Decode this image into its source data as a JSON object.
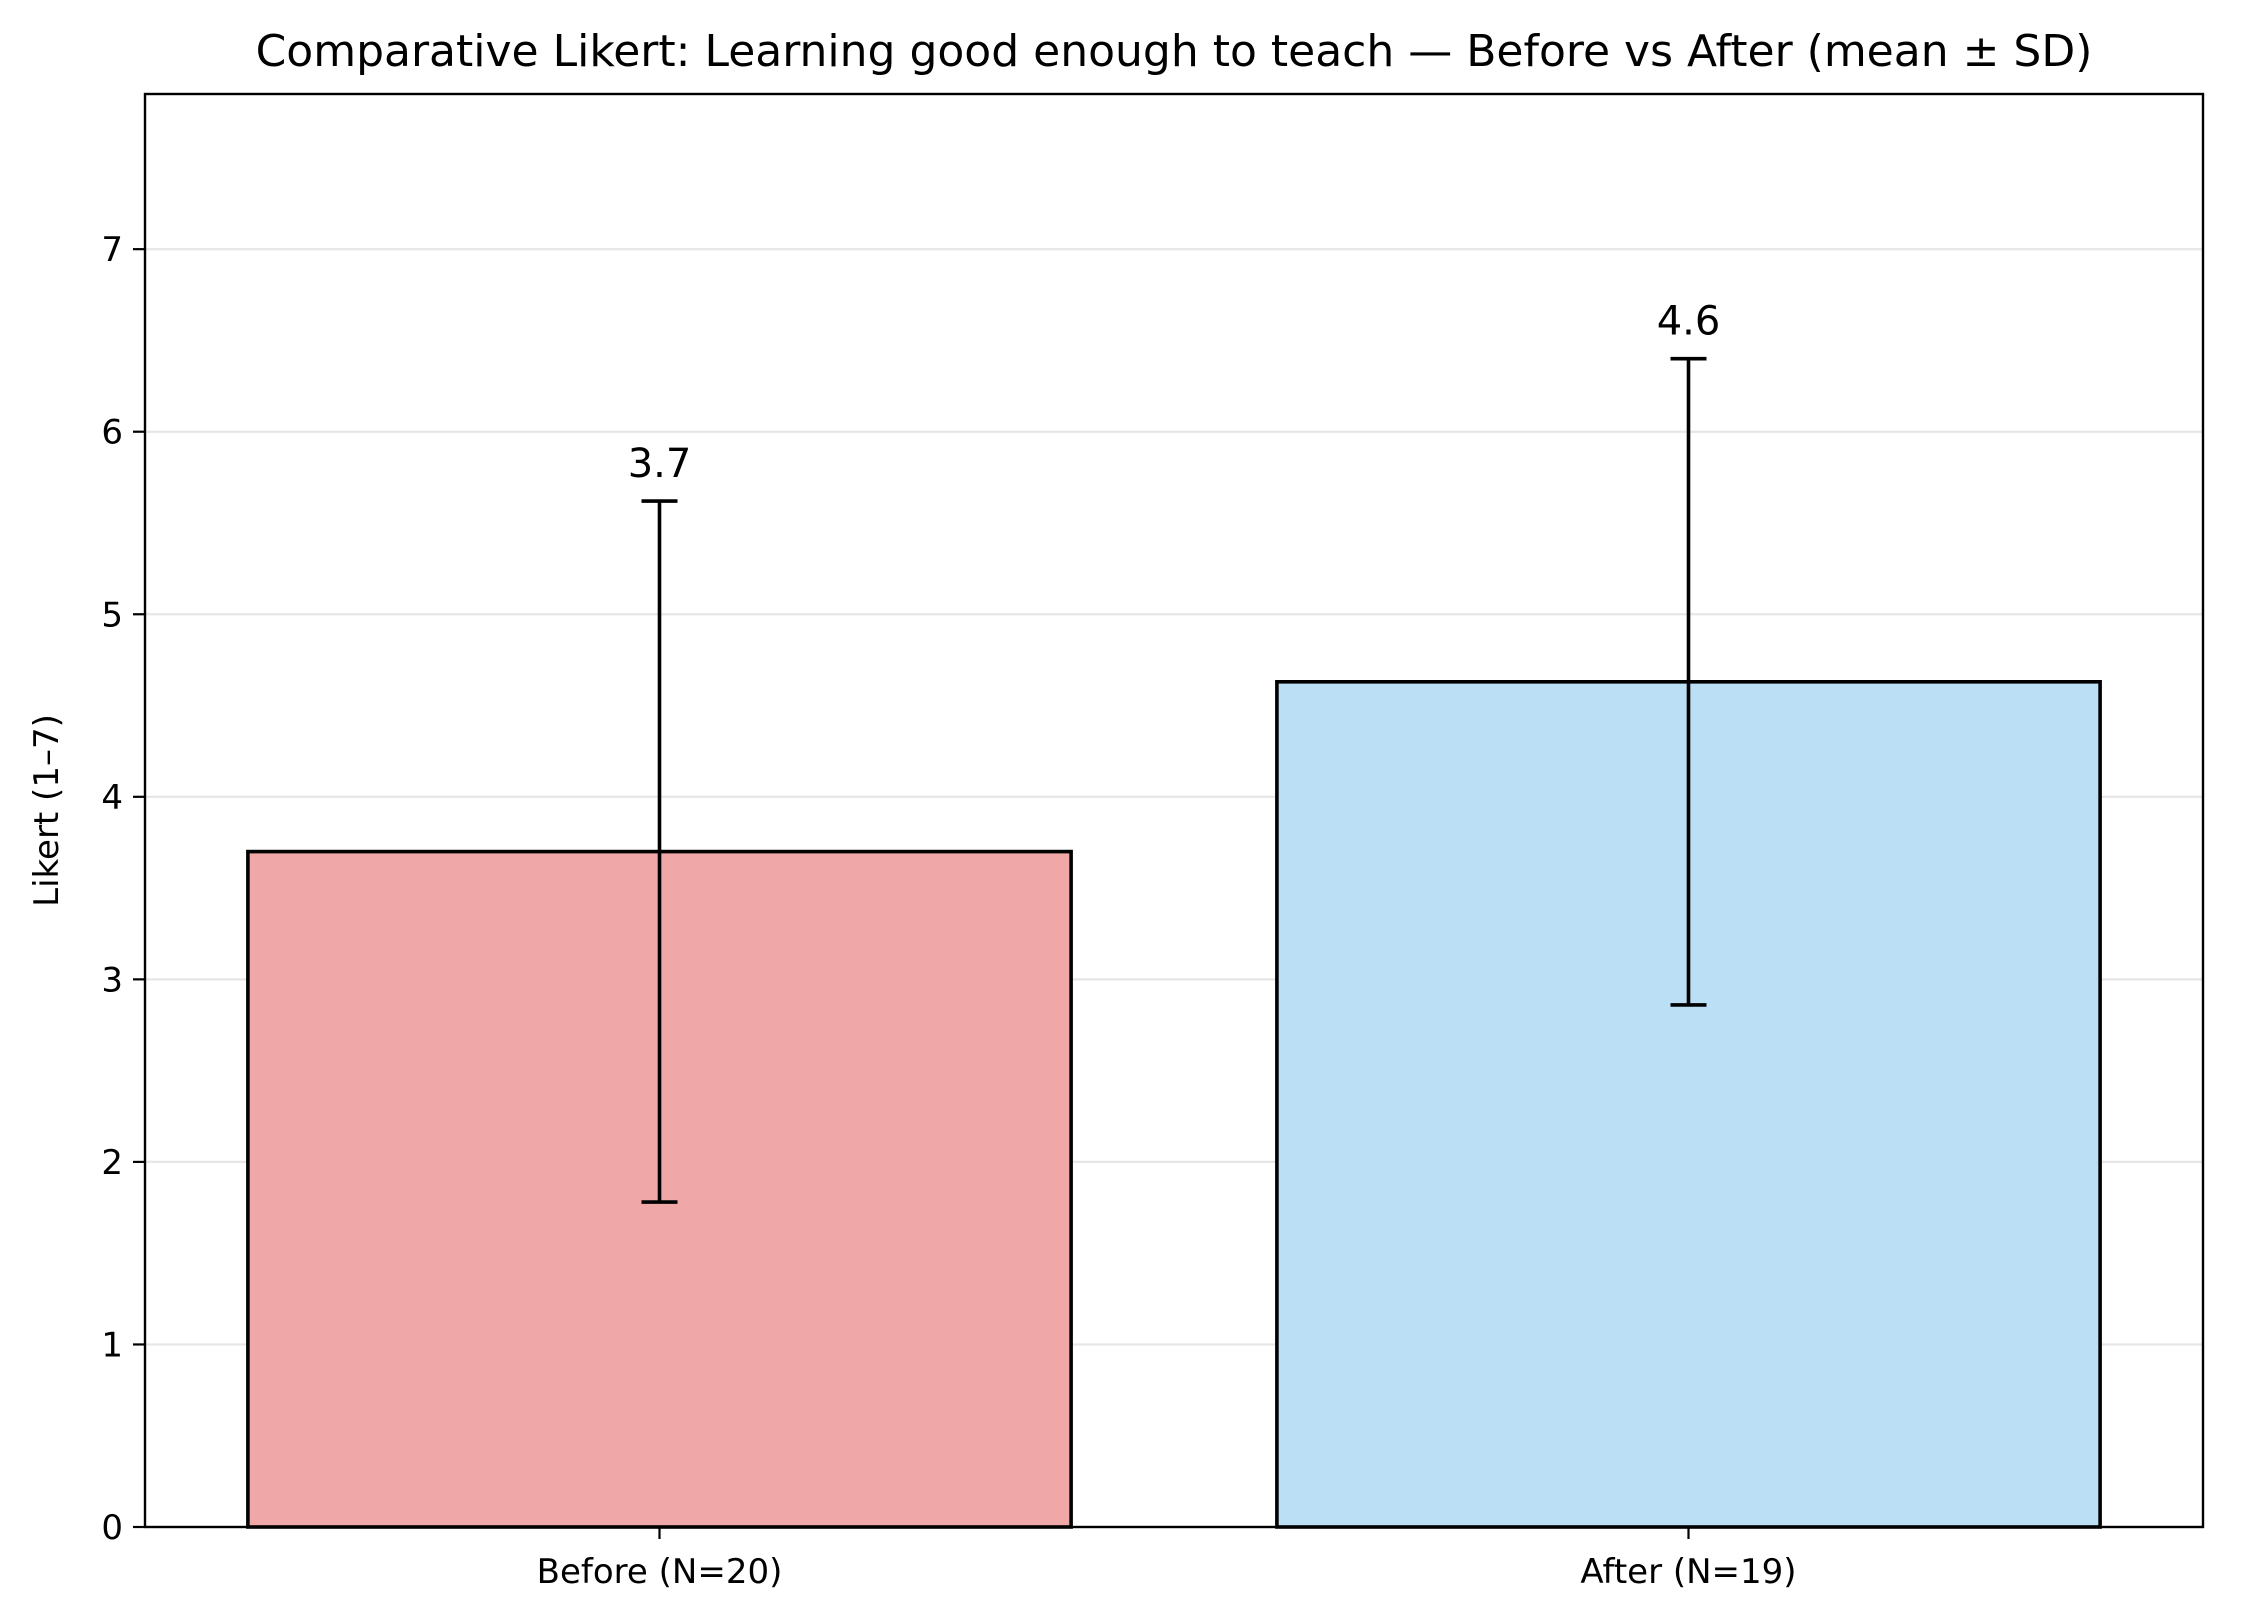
{
  "chart_data": {
    "type": "bar",
    "title": "Comparative Likert: Learning good enough to teach — Before vs After (mean ± SD)",
    "xlabel": "",
    "ylabel": "Likert (1–7)",
    "categories": [
      "Before (N=20)",
      "After (N=19)"
    ],
    "values": [
      3.7,
      4.63
    ],
    "errors": [
      1.92,
      1.77
    ],
    "value_labels": [
      "3.7",
      "4.6"
    ],
    "bar_colors": [
      "#f0a7a7",
      "#bbdff5"
    ],
    "ylim": [
      0,
      7.85
    ],
    "yticks": [
      0,
      1,
      2,
      3,
      4,
      5,
      6,
      7
    ],
    "grid": "horizontal",
    "legend": "none"
  }
}
